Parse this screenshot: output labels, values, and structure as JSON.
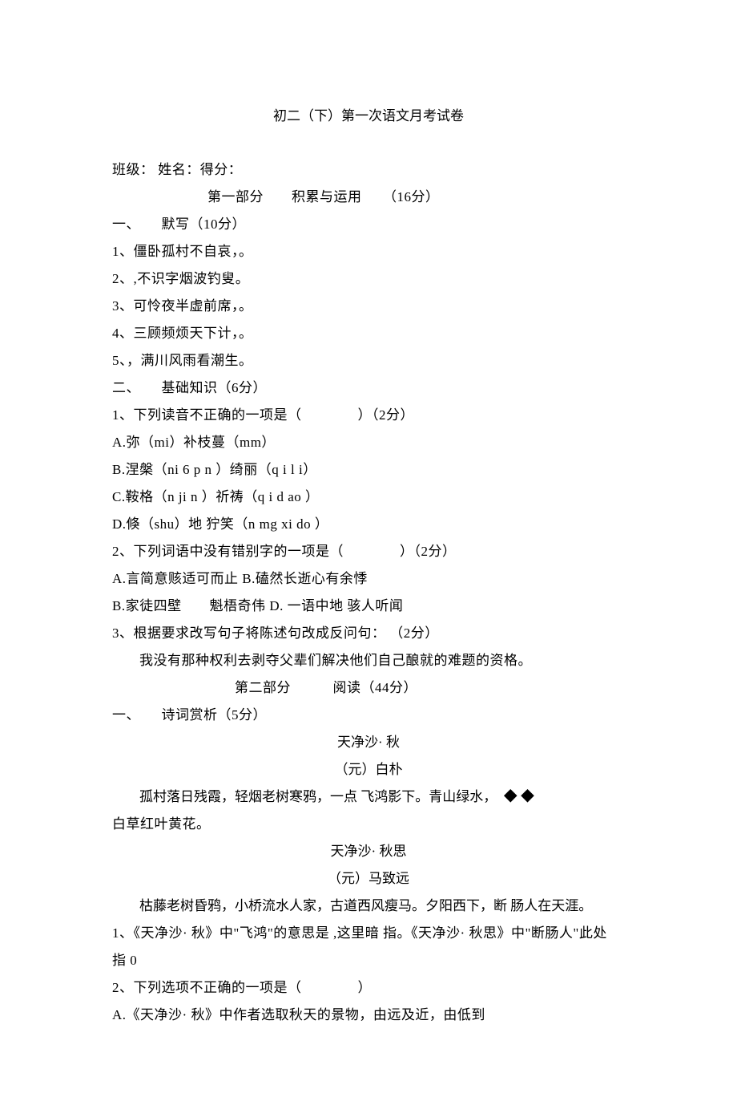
{
  "title": "初二（下）第一次语文月考试卷",
  "header_line": "班级：  姓名：得分：",
  "part1": {
    "header": "第一部分　　积累与运用　　（16分）",
    "section1": {
      "title": "一、　　默写（10分）",
      "items": [
        "1、僵卧孤村不自哀，。",
        "2、,不识字烟波钓叟。",
        "3、可怜夜半虚前席，。",
        "4、三顾频烦天下计，。",
        "5、，满川风雨看潮生。"
      ]
    },
    "section2": {
      "title": "二、　　基础知识（6分）",
      "q1": {
        "stem": "1、下列读音不正确的一项是（　　　　）（2分）",
        "options": [
          "A.弥（mi）补枝蔓（mm）",
          "B.涅槃（ni 6 p n ）绮丽（q i l i）",
          "C.鞍格（n ji n ）祈祷（q i d ao ）",
          "D.倏（shu）地 狞笑（n mg xi do ）"
        ]
      },
      "q2": {
        "stem": "2、下列词语中没有错别字的一项是（　　　　）（2分）",
        "options": [
          "A.言简意赅适可而止 B.磕然长逝心有余悸",
          "B.家徒四壁　　魁梧奇伟 D. 一语中地 骇人听闻"
        ]
      },
      "q3": {
        "stem": "3、根据要求改写句子将陈述句改成反问句： （2分）",
        "content": "我没有那种权利去剥夺父辈们解决他们自己酿就的难题的资格。"
      }
    }
  },
  "part2": {
    "header": "第二部分　　　阅读（44分）",
    "section1": {
      "title": "一、　　诗词赏析（5分）",
      "poem1": {
        "title": "天净沙· 秋",
        "author": "（元）白朴",
        "line1": "孤村落日残霞，轻烟老树寒鸦，一点 飞鸿影下。青山绿水，　◆ ◆",
        "line2": "白草红叶黄花。"
      },
      "poem2": {
        "title": "天净沙· 秋思",
        "author": "（元）马致远",
        "content": "枯藤老树昏鸦，小桥流水人家，古道西风瘦马。夕阳西下，断 肠人在天涯。"
      },
      "q1": "1、《天净沙·  秋》中\"飞鸿\"的意思是 ,这里暗 指。《天净沙·  秋思》中\"断肠人\"此处 指 0",
      "q2": {
        "stem": "2、下列选项不正确的一项是（　　　　）",
        "option": "A.《天净沙·  秋》中作者选取秋天的景物，由远及近，由低到"
      }
    }
  }
}
